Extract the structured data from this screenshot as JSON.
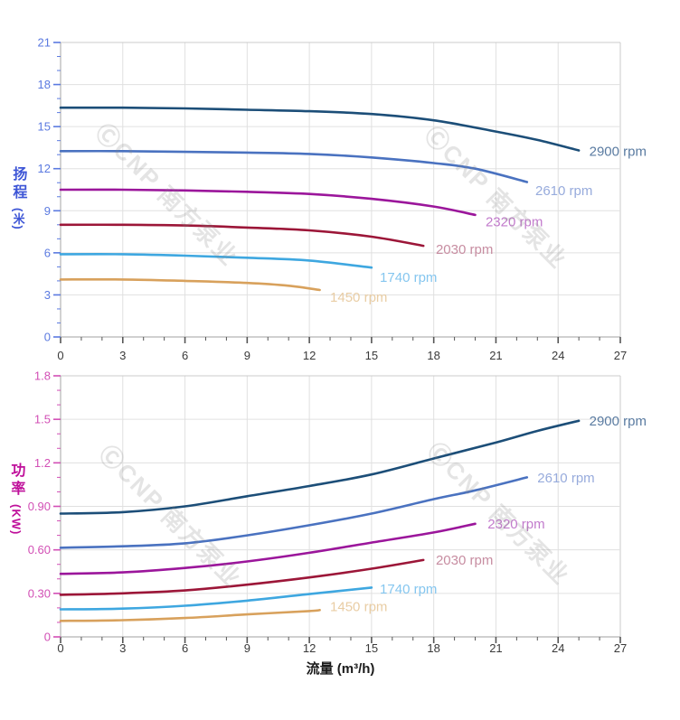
{
  "watermark": {
    "text": "ⒸCNP 南方泵业",
    "color": "rgba(130,130,130,0.22)"
  },
  "axes_titles": {
    "head_main": "扬程",
    "head_unit": "(米)",
    "power_main": "功率",
    "power_unit": "(KW)",
    "x_title": "流量 (m³/h)"
  },
  "axes": {
    "head_title_color": "#3d55d6",
    "head_tick_color": "#5b7ae0",
    "power_title_color": "#bf0f9a",
    "power_tick_color": "#d24fb5",
    "x_label_color": "#3a3a3a",
    "x_tick_color": "#555555",
    "grid_color": "#e0e0e0",
    "boundary_color": "#cbcbcb",
    "axis_line_color": "#b5b5b5"
  },
  "chart_data": [
    {
      "type": "line",
      "title": "",
      "xlabel": "流量 (m³/h)",
      "ylabel": "扬程 (米)",
      "xlim": [
        0,
        27
      ],
      "ylim": [
        0,
        21
      ],
      "x_ticks": [
        0,
        3,
        6,
        9,
        12,
        15,
        18,
        21,
        24,
        27
      ],
      "x_minor_step": 1,
      "y_tick_values": [
        0,
        3,
        6,
        9,
        12,
        15,
        18,
        21
      ],
      "y_tick_labels": [
        "0",
        "3",
        "6",
        "9",
        "12",
        "15",
        "18",
        "21"
      ],
      "y_minor_step": 1,
      "grid": true,
      "legend_position": "end-of-curve",
      "series": [
        {
          "name": "2900 rpm",
          "color": "#1c4e78",
          "label_color": "#5a7ba1",
          "points": [
            [
              0,
              16.35
            ],
            [
              3,
              16.35
            ],
            [
              6,
              16.3
            ],
            [
              9,
              16.2
            ],
            [
              12,
              16.1
            ],
            [
              15,
              15.9
            ],
            [
              18,
              15.45
            ],
            [
              21,
              14.65
            ],
            [
              23,
              14.05
            ],
            [
              25,
              13.3
            ]
          ],
          "label_at": [
            25.5,
            13.25
          ]
        },
        {
          "name": "2610 rpm",
          "color": "#4a72c0",
          "label_color": "#97abdc",
          "points": [
            [
              0,
              13.25
            ],
            [
              3,
              13.25
            ],
            [
              6,
              13.2
            ],
            [
              9,
              13.15
            ],
            [
              12,
              13.05
            ],
            [
              15,
              12.8
            ],
            [
              18,
              12.4
            ],
            [
              20,
              12.0
            ],
            [
              22.5,
              11.05
            ]
          ],
          "label_at": [
            22.9,
            10.45
          ]
        },
        {
          "name": "2320 rpm",
          "color": "#9b169b",
          "label_color": "#c27bcc",
          "points": [
            [
              0,
              10.5
            ],
            [
              3,
              10.5
            ],
            [
              6,
              10.45
            ],
            [
              9,
              10.35
            ],
            [
              12,
              10.2
            ],
            [
              15,
              9.85
            ],
            [
              18,
              9.3
            ],
            [
              20,
              8.7
            ]
          ],
          "label_at": [
            20.5,
            8.2
          ]
        },
        {
          "name": "2030 rpm",
          "color": "#9c1638",
          "label_color": "#c78da1",
          "points": [
            [
              0,
              8.0
            ],
            [
              3,
              8.0
            ],
            [
              6,
              7.95
            ],
            [
              9,
              7.8
            ],
            [
              12,
              7.6
            ],
            [
              15,
              7.15
            ],
            [
              17.5,
              6.5
            ]
          ],
          "label_at": [
            18.1,
            6.25
          ]
        },
        {
          "name": "1740 rpm",
          "color": "#3ea7e0",
          "label_color": "#85c6ef",
          "points": [
            [
              0,
              5.9
            ],
            [
              3,
              5.9
            ],
            [
              6,
              5.8
            ],
            [
              9,
              5.65
            ],
            [
              12,
              5.45
            ],
            [
              15,
              4.95
            ]
          ],
          "label_at": [
            15.4,
            4.25
          ]
        },
        {
          "name": "1450 rpm",
          "color": "#d8a15c",
          "label_color": "#e9cda4",
          "points": [
            [
              0,
              4.1
            ],
            [
              3,
              4.1
            ],
            [
              6,
              4.0
            ],
            [
              9,
              3.85
            ],
            [
              11,
              3.65
            ],
            [
              12.5,
              3.35
            ]
          ],
          "label_at": [
            13.0,
            2.85
          ]
        }
      ]
    },
    {
      "type": "line",
      "title": "",
      "xlabel": "流量 (m³/h)",
      "ylabel": "功率 (KW)",
      "xlim": [
        0,
        27
      ],
      "ylim": [
        0,
        1.8
      ],
      "x_ticks": [
        0,
        3,
        6,
        9,
        12,
        15,
        18,
        21,
        24,
        27
      ],
      "x_minor_step": 1,
      "y_tick_values": [
        0,
        0.3,
        0.6,
        0.9,
        1.2,
        1.5,
        1.8
      ],
      "y_tick_labels": [
        "0",
        "0.30",
        "0.60",
        "0.90",
        "1.2",
        "1.5",
        "1.8"
      ],
      "y_minor_step": 0.1,
      "grid": true,
      "legend_position": "end-of-curve",
      "series": [
        {
          "name": "2900 rpm",
          "color": "#1c4e78",
          "label_color": "#5a7ba1",
          "points": [
            [
              0,
              0.85
            ],
            [
              3,
              0.86
            ],
            [
              6,
              0.9
            ],
            [
              9,
              0.97
            ],
            [
              12,
              1.04
            ],
            [
              15,
              1.12
            ],
            [
              18,
              1.23
            ],
            [
              21,
              1.34
            ],
            [
              23,
              1.42
            ],
            [
              25,
              1.49
            ]
          ],
          "label_at": [
            25.5,
            1.49
          ]
        },
        {
          "name": "2610 rpm",
          "color": "#4a72c0",
          "label_color": "#97abdc",
          "points": [
            [
              0,
              0.615
            ],
            [
              3,
              0.625
            ],
            [
              6,
              0.645
            ],
            [
              9,
              0.7
            ],
            [
              12,
              0.77
            ],
            [
              15,
              0.85
            ],
            [
              18,
              0.95
            ],
            [
              20,
              1.01
            ],
            [
              22.5,
              1.1
            ]
          ],
          "label_at": [
            23.0,
            1.095
          ]
        },
        {
          "name": "2320 rpm",
          "color": "#9b169b",
          "label_color": "#c27bcc",
          "points": [
            [
              0,
              0.435
            ],
            [
              3,
              0.445
            ],
            [
              6,
              0.475
            ],
            [
              9,
              0.52
            ],
            [
              12,
              0.58
            ],
            [
              15,
              0.65
            ],
            [
              18,
              0.72
            ],
            [
              20,
              0.78
            ]
          ],
          "label_at": [
            20.6,
            0.78
          ]
        },
        {
          "name": "2030 rpm",
          "color": "#9c1638",
          "label_color": "#c78da1",
          "points": [
            [
              0,
              0.29
            ],
            [
              3,
              0.3
            ],
            [
              6,
              0.32
            ],
            [
              9,
              0.36
            ],
            [
              12,
              0.41
            ],
            [
              15,
              0.47
            ],
            [
              17.5,
              0.53
            ]
          ],
          "label_at": [
            18.1,
            0.53
          ]
        },
        {
          "name": "1740 rpm",
          "color": "#3ea7e0",
          "label_color": "#85c6ef",
          "points": [
            [
              0,
              0.19
            ],
            [
              3,
              0.195
            ],
            [
              6,
              0.215
            ],
            [
              9,
              0.25
            ],
            [
              12,
              0.295
            ],
            [
              15,
              0.34
            ]
          ],
          "label_at": [
            15.4,
            0.33
          ]
        },
        {
          "name": "1450 rpm",
          "color": "#d8a15c",
          "label_color": "#e9cda4",
          "points": [
            [
              0,
              0.11
            ],
            [
              3,
              0.115
            ],
            [
              6,
              0.13
            ],
            [
              9,
              0.155
            ],
            [
              12,
              0.178
            ],
            [
              12.5,
              0.185
            ]
          ],
          "label_at": [
            13.0,
            0.21
          ]
        }
      ]
    }
  ]
}
